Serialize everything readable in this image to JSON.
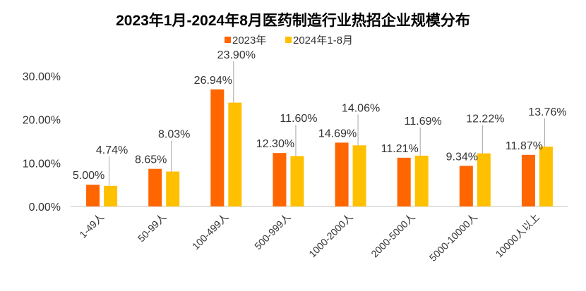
{
  "chart_data": {
    "type": "bar",
    "title": "2023年1月-2024年8月医药制造行业热招企业规模分布",
    "categories": [
      "1-49人",
      "50-99人",
      "100-499人",
      "500-999人",
      "1000-2000人",
      "2000-5000人",
      "5000-10000人",
      "10000人以上"
    ],
    "series": [
      {
        "name": "2023年",
        "color": "#FF6600",
        "values": [
          5.0,
          8.65,
          26.94,
          12.3,
          14.69,
          11.21,
          9.34,
          11.87
        ],
        "labels": [
          "5.00%",
          "8.65%",
          "26.94%",
          "12.30%",
          "14.69%",
          "11.21%",
          "9.34%",
          "11.87%"
        ]
      },
      {
        "name": "2024年1-8月",
        "color": "#FFC000",
        "values": [
          4.74,
          8.03,
          23.9,
          11.6,
          14.06,
          11.69,
          12.22,
          13.76
        ],
        "labels": [
          "4.74%",
          "8.03%",
          "23.90%",
          "11.60%",
          "14.06%",
          "11.69%",
          "12.22%",
          "13.76%"
        ]
      }
    ],
    "xlabel": "",
    "ylabel": "",
    "ylim": [
      0,
      30
    ],
    "yticks": [
      "0.00%",
      "10.00%",
      "20.00%",
      "30.00%"
    ],
    "grid": false,
    "legend": "top"
  }
}
